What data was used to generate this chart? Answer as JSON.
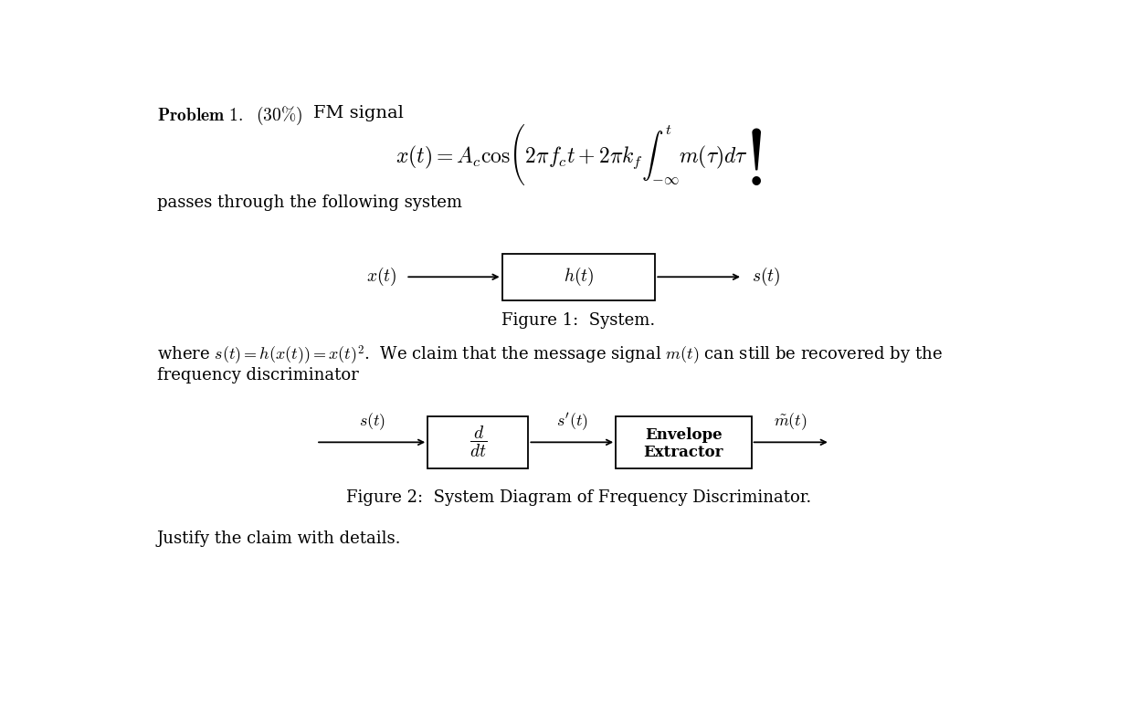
{
  "bg_color": "#ffffff",
  "title_bold": "Problem 1.  (30%)",
  "title_normal": " FM signal",
  "formula_main": "$x(t) = A_c \\cos\\!\\left(2\\pi f_c t + 2\\pi k_f \\int_{-\\infty}^{t} m(\\tau)d\\tau\\right)$",
  "passes_text": "passes through the following system",
  "fig1_caption": "Figure 1:  System.",
  "block1_label": "$h(t)$",
  "input1_label": "$x(t)$",
  "output1_label": "$s(t)$",
  "where_line1": "where $s(t) = h(x(t)) = x(t)^2$.  We claim that the message signal $m(t)$ can still be recovered by the",
  "where_line2": "frequency discriminator",
  "fig2_caption": "Figure 2:  System Diagram of Frequency Discriminator.",
  "block2a_label": "$\\dfrac{d}{dt}$",
  "block2b_line1": "Envelope",
  "block2b_line2": "Extractor",
  "input2_label": "$s(t)$",
  "mid2_label": "$s'(t)$",
  "output2_label": "$\\tilde{m}(t)$",
  "justify_text": "Justify the claim with details.",
  "fig_width": 12.36,
  "fig_height": 7.71,
  "dpi": 100
}
